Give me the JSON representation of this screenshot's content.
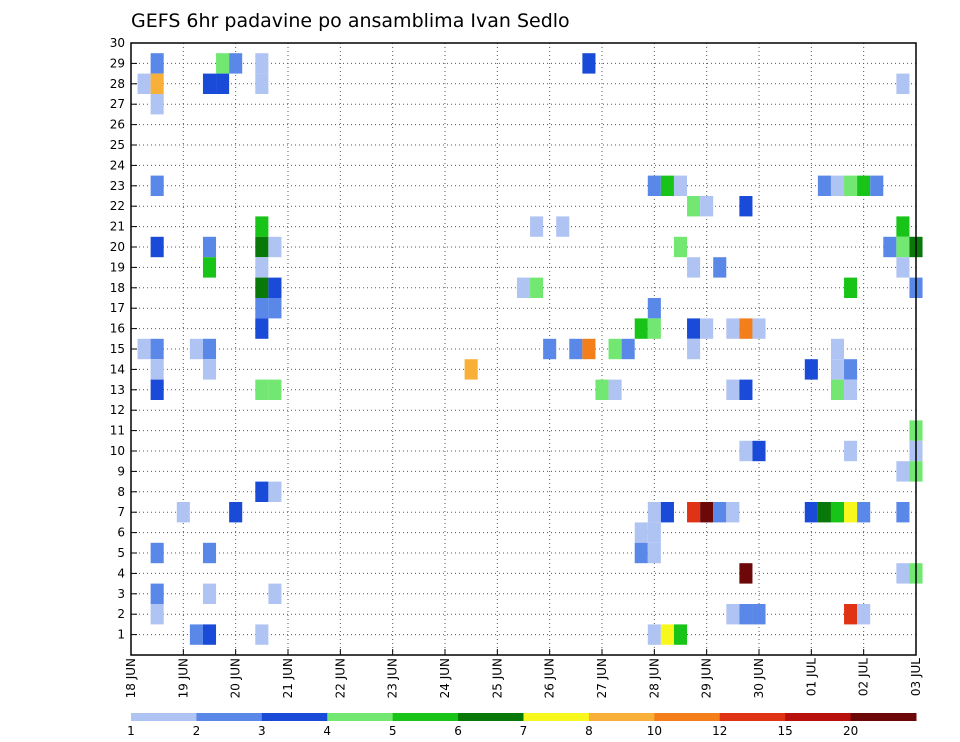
{
  "chart_data": {
    "type": "heatmap",
    "title": "GEFS 6hr padavine po ansamblima Ivan Sedlo",
    "xlabel": "",
    "ylabel": "",
    "x_tick_labels": [
      "18 JUN",
      "19 JUN",
      "20 JUN",
      "21 JUN",
      "22 JUN",
      "23 JUN",
      "24 JUN",
      "25 JUN",
      "26 JUN",
      "27 JUN",
      "28 JUN",
      "29 JUN",
      "30 JUN",
      "01 JUL",
      "02 JUL",
      "03 JUL"
    ],
    "y_tick_labels": [
      "1",
      "2",
      "3",
      "4",
      "5",
      "6",
      "7",
      "8",
      "9",
      "10",
      "11",
      "12",
      "13",
      "14",
      "15",
      "16",
      "17",
      "18",
      "19",
      "20",
      "21",
      "22",
      "23",
      "24",
      "25",
      "26",
      "27",
      "28",
      "29",
      "30"
    ],
    "x_unit": "day offset (0 = 18 JUN 00Z), 6-hour steps",
    "y_range": [
      0,
      30
    ],
    "x_range": [
      0,
      15
    ],
    "grid": true,
    "colorbar": {
      "labels": [
        "1",
        "2",
        "3",
        "4",
        "5",
        "6",
        "7",
        "8",
        "10",
        "12",
        "15",
        "20"
      ],
      "colors": [
        "#b0c4f4",
        "#5a88e8",
        "#1a4ad8",
        "#72e872",
        "#18c418",
        "#087808",
        "#f8f81c",
        "#f8b038",
        "#f47e1a",
        "#e03214",
        "#b8100c",
        "#6c0808"
      ]
    },
    "cells": [
      {
        "member": 29,
        "day": 0.5,
        "level": 2
      },
      {
        "member": 29,
        "day": 1.75,
        "level": 4
      },
      {
        "member": 29,
        "day": 2.0,
        "level": 2
      },
      {
        "member": 29,
        "day": 2.5,
        "level": 1
      },
      {
        "member": 29,
        "day": 8.75,
        "level": 3
      },
      {
        "member": 28,
        "day": 0.25,
        "level": 1
      },
      {
        "member": 28,
        "day": 0.5,
        "level": 8
      },
      {
        "member": 28,
        "day": 1.5,
        "level": 3
      },
      {
        "member": 28,
        "day": 1.75,
        "level": 3
      },
      {
        "member": 28,
        "day": 2.5,
        "level": 1
      },
      {
        "member": 28,
        "day": 14.75,
        "level": 1
      },
      {
        "member": 27,
        "day": 0.5,
        "level": 1
      },
      {
        "member": 23,
        "day": 0.5,
        "level": 2
      },
      {
        "member": 23,
        "day": 10.0,
        "level": 2
      },
      {
        "member": 23,
        "day": 10.25,
        "level": 5
      },
      {
        "member": 23,
        "day": 10.5,
        "level": 1
      },
      {
        "member": 23,
        "day": 13.25,
        "level": 2
      },
      {
        "member": 23,
        "day": 13.5,
        "level": 1
      },
      {
        "member": 23,
        "day": 13.75,
        "level": 4
      },
      {
        "member": 23,
        "day": 14.0,
        "level": 5
      },
      {
        "member": 23,
        "day": 14.25,
        "level": 2
      },
      {
        "member": 22,
        "day": 10.75,
        "level": 4
      },
      {
        "member": 22,
        "day": 11.0,
        "level": 1
      },
      {
        "member": 22,
        "day": 11.75,
        "level": 3
      },
      {
        "member": 21,
        "day": 2.5,
        "level": 5
      },
      {
        "member": 21,
        "day": 7.75,
        "level": 1
      },
      {
        "member": 21,
        "day": 8.25,
        "level": 1
      },
      {
        "member": 21,
        "day": 14.75,
        "level": 5
      },
      {
        "member": 20,
        "day": 0.5,
        "level": 3
      },
      {
        "member": 20,
        "day": 1.5,
        "level": 2
      },
      {
        "member": 20,
        "day": 2.5,
        "level": 6
      },
      {
        "member": 20,
        "day": 2.75,
        "level": 1
      },
      {
        "member": 20,
        "day": 10.5,
        "level": 4
      },
      {
        "member": 20,
        "day": 14.5,
        "level": 2
      },
      {
        "member": 20,
        "day": 14.75,
        "level": 4
      },
      {
        "member": 20,
        "day": 15.0,
        "level": 6
      },
      {
        "member": 19,
        "day": 1.5,
        "level": 5
      },
      {
        "member": 19,
        "day": 2.5,
        "level": 1
      },
      {
        "member": 19,
        "day": 10.75,
        "level": 1
      },
      {
        "member": 19,
        "day": 11.25,
        "level": 2
      },
      {
        "member": 19,
        "day": 14.75,
        "level": 1
      },
      {
        "member": 18,
        "day": 2.5,
        "level": 6
      },
      {
        "member": 18,
        "day": 2.75,
        "level": 3
      },
      {
        "member": 18,
        "day": 7.5,
        "level": 1
      },
      {
        "member": 18,
        "day": 7.75,
        "level": 4
      },
      {
        "member": 18,
        "day": 13.75,
        "level": 5
      },
      {
        "member": 18,
        "day": 15.0,
        "level": 2
      },
      {
        "member": 17,
        "day": 2.5,
        "level": 2
      },
      {
        "member": 17,
        "day": 2.75,
        "level": 2
      },
      {
        "member": 17,
        "day": 10.0,
        "level": 2
      },
      {
        "member": 16,
        "day": 2.5,
        "level": 3
      },
      {
        "member": 16,
        "day": 9.75,
        "level": 5
      },
      {
        "member": 16,
        "day": 10.0,
        "level": 4
      },
      {
        "member": 16,
        "day": 10.75,
        "level": 3
      },
      {
        "member": 16,
        "day": 11.0,
        "level": 1
      },
      {
        "member": 16,
        "day": 11.5,
        "level": 1
      },
      {
        "member": 16,
        "day": 11.75,
        "level": 9
      },
      {
        "member": 16,
        "day": 12.0,
        "level": 1
      },
      {
        "member": 15,
        "day": 0.25,
        "level": 1
      },
      {
        "member": 15,
        "day": 0.5,
        "level": 2
      },
      {
        "member": 15,
        "day": 1.25,
        "level": 1
      },
      {
        "member": 15,
        "day": 1.5,
        "level": 2
      },
      {
        "member": 15,
        "day": 8.0,
        "level": 2
      },
      {
        "member": 15,
        "day": 8.5,
        "level": 2
      },
      {
        "member": 15,
        "day": 8.75,
        "level": 9
      },
      {
        "member": 15,
        "day": 9.25,
        "level": 4
      },
      {
        "member": 15,
        "day": 9.5,
        "level": 2
      },
      {
        "member": 15,
        "day": 10.75,
        "level": 1
      },
      {
        "member": 15,
        "day": 13.5,
        "level": 1
      },
      {
        "member": 14,
        "day": 0.5,
        "level": 1
      },
      {
        "member": 14,
        "day": 1.5,
        "level": 1
      },
      {
        "member": 14,
        "day": 6.5,
        "level": 8
      },
      {
        "member": 14,
        "day": 13.0,
        "level": 3
      },
      {
        "member": 14,
        "day": 13.5,
        "level": 1
      },
      {
        "member": 14,
        "day": 13.75,
        "level": 2
      },
      {
        "member": 13,
        "day": 0.5,
        "level": 3
      },
      {
        "member": 13,
        "day": 2.5,
        "level": 4
      },
      {
        "member": 13,
        "day": 2.75,
        "level": 4
      },
      {
        "member": 13,
        "day": 9.0,
        "level": 4
      },
      {
        "member": 13,
        "day": 9.25,
        "level": 1
      },
      {
        "member": 13,
        "day": 11.5,
        "level": 1
      },
      {
        "member": 13,
        "day": 11.75,
        "level": 3
      },
      {
        "member": 13,
        "day": 13.5,
        "level": 4
      },
      {
        "member": 13,
        "day": 13.75,
        "level": 1
      },
      {
        "member": 11,
        "day": 15.0,
        "level": 4
      },
      {
        "member": 10,
        "day": 11.75,
        "level": 1
      },
      {
        "member": 10,
        "day": 12.0,
        "level": 3
      },
      {
        "member": 10,
        "day": 13.75,
        "level": 1
      },
      {
        "member": 10,
        "day": 15.0,
        "level": 1
      },
      {
        "member": 9,
        "day": 14.75,
        "level": 1
      },
      {
        "member": 9,
        "day": 15.0,
        "level": 4
      },
      {
        "member": 8,
        "day": 2.5,
        "level": 3
      },
      {
        "member": 8,
        "day": 2.75,
        "level": 1
      },
      {
        "member": 7,
        "day": 1.0,
        "level": 1
      },
      {
        "member": 7,
        "day": 2.0,
        "level": 3
      },
      {
        "member": 7,
        "day": 10.0,
        "level": 1
      },
      {
        "member": 7,
        "day": 10.25,
        "level": 3
      },
      {
        "member": 7,
        "day": 10.75,
        "level": 10
      },
      {
        "member": 7,
        "day": 11.0,
        "level": 12
      },
      {
        "member": 7,
        "day": 11.25,
        "level": 2
      },
      {
        "member": 7,
        "day": 11.5,
        "level": 1
      },
      {
        "member": 7,
        "day": 13.0,
        "level": 3
      },
      {
        "member": 7,
        "day": 13.25,
        "level": 6
      },
      {
        "member": 7,
        "day": 13.5,
        "level": 5
      },
      {
        "member": 7,
        "day": 13.75,
        "level": 7
      },
      {
        "member": 7,
        "day": 14.0,
        "level": 2
      },
      {
        "member": 7,
        "day": 14.75,
        "level": 2
      },
      {
        "member": 6,
        "day": 9.75,
        "level": 1
      },
      {
        "member": 6,
        "day": 10.0,
        "level": 1
      },
      {
        "member": 5,
        "day": 0.5,
        "level": 2
      },
      {
        "member": 5,
        "day": 1.5,
        "level": 2
      },
      {
        "member": 5,
        "day": 9.75,
        "level": 2
      },
      {
        "member": 5,
        "day": 10.0,
        "level": 1
      },
      {
        "member": 4,
        "day": 11.75,
        "level": 12
      },
      {
        "member": 4,
        "day": 14.75,
        "level": 1
      },
      {
        "member": 4,
        "day": 15.0,
        "level": 4
      },
      {
        "member": 3,
        "day": 0.5,
        "level": 2
      },
      {
        "member": 3,
        "day": 1.5,
        "level": 1
      },
      {
        "member": 3,
        "day": 2.75,
        "level": 1
      },
      {
        "member": 2,
        "day": 0.5,
        "level": 1
      },
      {
        "member": 2,
        "day": 11.5,
        "level": 1
      },
      {
        "member": 2,
        "day": 11.75,
        "level": 2
      },
      {
        "member": 2,
        "day": 12.0,
        "level": 2
      },
      {
        "member": 2,
        "day": 13.75,
        "level": 10
      },
      {
        "member": 2,
        "day": 14.0,
        "level": 1
      },
      {
        "member": 1,
        "day": 1.25,
        "level": 2
      },
      {
        "member": 1,
        "day": 1.5,
        "level": 3
      },
      {
        "member": 1,
        "day": 2.5,
        "level": 1
      },
      {
        "member": 1,
        "day": 10.0,
        "level": 1
      },
      {
        "member": 1,
        "day": 10.25,
        "level": 7
      },
      {
        "member": 1,
        "day": 10.5,
        "level": 5
      }
    ]
  }
}
